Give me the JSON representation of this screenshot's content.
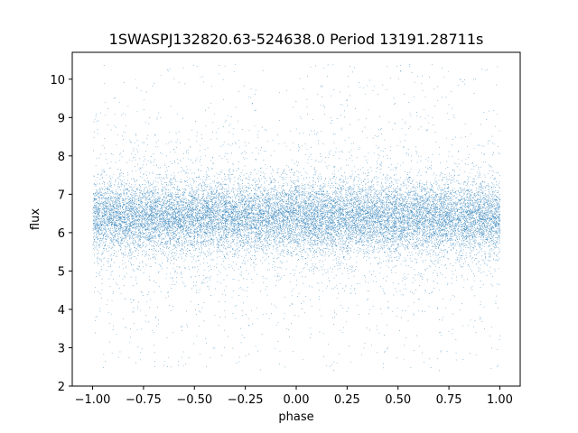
{
  "chart_data": {
    "type": "scatter",
    "title": "1SWASPJ132820.63-524638.0 Period 13191.28711s",
    "xlabel": "phase",
    "ylabel": "flux",
    "xlim": [
      -1.1,
      1.1
    ],
    "ylim": [
      2.0,
      10.7
    ],
    "x_ticks": [
      -1.0,
      -0.75,
      -0.5,
      -0.25,
      0.0,
      0.25,
      0.5,
      0.75,
      1.0
    ],
    "x_tick_labels": [
      "−1.00",
      "−0.75",
      "−0.50",
      "−0.25",
      "0.00",
      "0.25",
      "0.50",
      "0.75",
      "1.00"
    ],
    "y_ticks": [
      2,
      3,
      4,
      5,
      6,
      7,
      8,
      9,
      10
    ],
    "y_tick_labels": [
      "2",
      "3",
      "4",
      "5",
      "6",
      "7",
      "8",
      "9",
      "10"
    ],
    "grid": false,
    "legend": "none",
    "series": [
      {
        "color": "#1f77b4",
        "x_range": [
          -1.0,
          1.0
        ],
        "y_center": 6.4,
        "y_core_range": [
          5.5,
          7.3
        ],
        "y_full_range": [
          2.4,
          10.4
        ],
        "approx_points": 60000
      }
    ]
  }
}
